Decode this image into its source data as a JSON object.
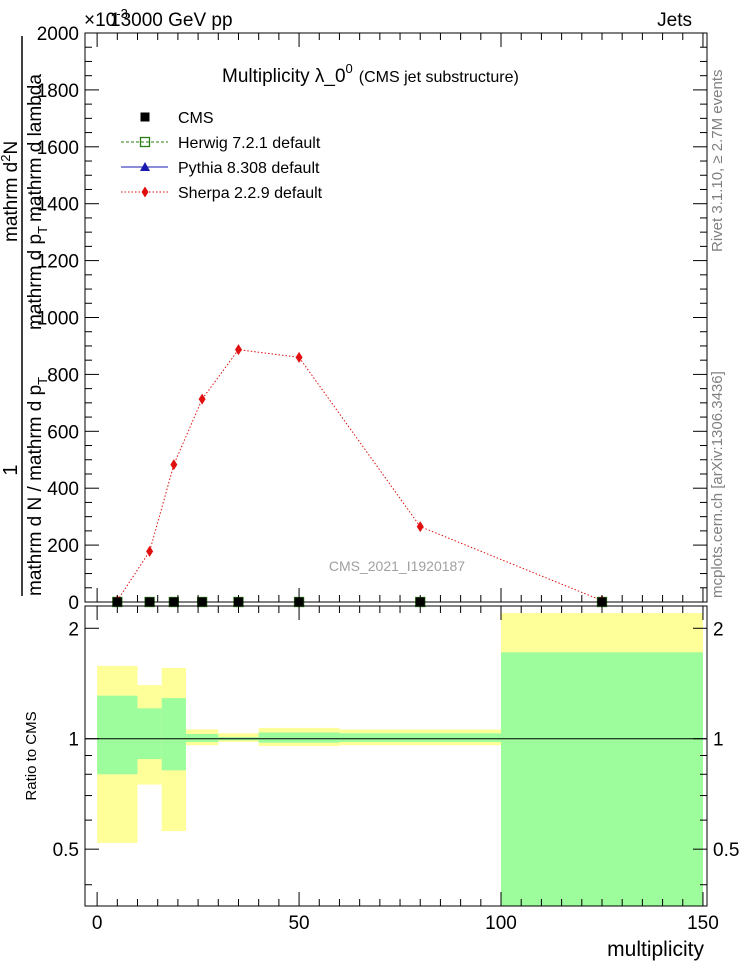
{
  "header": {
    "left": "13000 GeV pp",
    "right": "Jets",
    "exponent_label": "×10",
    "exponent_power": "-3"
  },
  "title": {
    "main": "Multiplicity  λ_0",
    "main_sup": "0",
    "sub": "(CMS jet substructure)"
  },
  "side_labels": {
    "rivet": "Rivet 3.1.10, ≥ 2.7M events",
    "mcplots": "mcplots.cern.ch [arXiv:1306.3436]"
  },
  "watermark": "CMS_2021_I1920187",
  "ylabel": {
    "numerator": "1",
    "denominator": "mathrm d N / mathrm d p",
    "denominator_sub": "T",
    "upper_top": "mathrm d",
    "upper_top_sup": "2",
    "upper_top_rest": "N",
    "upper_bottom": "mathrm d p",
    "upper_bottom_sub": "T",
    "upper_bottom_rest": "mathrm d lambda"
  },
  "ratio_ylabel": "Ratio to CMS",
  "xlabel": "multiplicity",
  "legend": [
    {
      "name": "CMS",
      "color": "#000000",
      "marker": "square"
    },
    {
      "name": "Herwig 7.2.1 default",
      "color": "#2e7d14",
      "marker": "open-square",
      "dash": "3,2"
    },
    {
      "name": "Pythia 8.308 default",
      "color": "#1a1ab0",
      "marker": "triangle"
    },
    {
      "name": "Sherpa 2.2.9 default",
      "color": "#e01010",
      "marker": "diamond",
      "dash": "1.5,2"
    }
  ],
  "chart_data": {
    "type": "line",
    "xlim": [
      -3,
      151
    ],
    "ylim": [
      0,
      2000
    ],
    "y_scale_factor": "×10^-3",
    "xticks": [
      0,
      50,
      100,
      150
    ],
    "yticks": [
      0,
      200,
      400,
      600,
      800,
      1000,
      1200,
      1400,
      1600,
      1800,
      2000
    ],
    "ytick_labels": [
      "0",
      "200",
      "400",
      "600",
      "800",
      "1000",
      "1200",
      "1400",
      "1600",
      "1800",
      "2000"
    ],
    "bins": [
      [
        0,
        10
      ],
      [
        10,
        16
      ],
      [
        16,
        22
      ],
      [
        22,
        30
      ],
      [
        30,
        40
      ],
      [
        40,
        60
      ],
      [
        60,
        100
      ],
      [
        100,
        150
      ]
    ],
    "series": [
      {
        "name": "CMS",
        "x": [
          5,
          13,
          19,
          26,
          35,
          50,
          80,
          125
        ],
        "y": [
          0,
          0,
          0,
          0,
          0,
          0,
          0,
          0
        ]
      },
      {
        "name": "Herwig 7.2.1 default",
        "x": [
          5,
          13,
          19,
          26,
          35,
          50,
          80,
          125
        ],
        "y": [
          0,
          0,
          0,
          0,
          0,
          0,
          0,
          0
        ]
      },
      {
        "name": "Pythia 8.308 default",
        "x": [
          5,
          13,
          19,
          26,
          35,
          50,
          80,
          125
        ],
        "y": [
          0,
          0,
          0,
          0,
          0,
          0,
          0,
          0
        ]
      },
      {
        "name": "Sherpa 2.2.9 default",
        "x": [
          5,
          13,
          19,
          26,
          35,
          50,
          80,
          125
        ],
        "y": [
          5,
          178,
          483,
          713,
          887,
          860,
          265,
          5
        ]
      }
    ],
    "ratio": {
      "ylim": [
        0.35,
        2.3
      ],
      "yticks": [
        0.5,
        1,
        2
      ],
      "ytick_labels": [
        "0.5",
        "1",
        "2"
      ],
      "band_stat": [
        {
          "x0": 0,
          "x1": 10,
          "lo": 0.8,
          "hi": 1.31
        },
        {
          "x0": 10,
          "x1": 16,
          "lo": 0.88,
          "hi": 1.21
        },
        {
          "x0": 16,
          "x1": 22,
          "lo": 0.82,
          "hi": 1.29
        },
        {
          "x0": 22,
          "x1": 30,
          "lo": 0.98,
          "hi": 1.03
        },
        {
          "x0": 30,
          "x1": 40,
          "lo": 0.99,
          "hi": 1.01
        },
        {
          "x0": 40,
          "x1": 60,
          "lo": 0.975,
          "hi": 1.04
        },
        {
          "x0": 60,
          "x1": 100,
          "lo": 0.98,
          "hi": 1.035
        },
        {
          "x0": 100,
          "x1": 150,
          "lo": 0.35,
          "hi": 1.72
        }
      ],
      "band_total": [
        {
          "x0": 0,
          "x1": 10,
          "lo": 0.52,
          "hi": 1.58
        },
        {
          "x0": 10,
          "x1": 16,
          "lo": 0.75,
          "hi": 1.4
        },
        {
          "x0": 16,
          "x1": 22,
          "lo": 0.56,
          "hi": 1.56
        },
        {
          "x0": 22,
          "x1": 30,
          "lo": 0.96,
          "hi": 1.06
        },
        {
          "x0": 30,
          "x1": 40,
          "lo": 0.98,
          "hi": 1.035
        },
        {
          "x0": 40,
          "x1": 60,
          "lo": 0.955,
          "hi": 1.07
        },
        {
          "x0": 60,
          "x1": 100,
          "lo": 0.96,
          "hi": 1.06
        },
        {
          "x0": 100,
          "x1": 150,
          "lo": 0.35,
          "hi": 2.2
        }
      ],
      "colors": {
        "stat": "#9dfd9d",
        "total": "#ffff99"
      }
    }
  }
}
